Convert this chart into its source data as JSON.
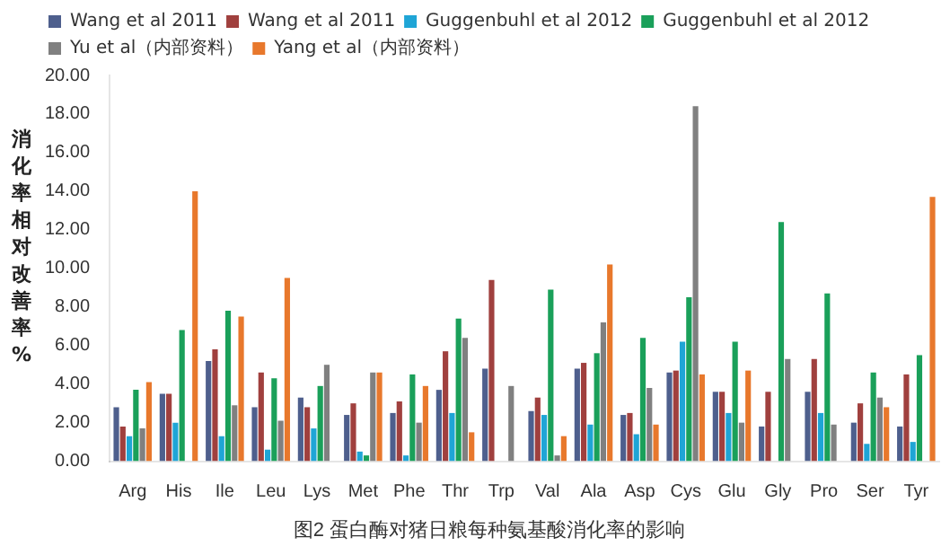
{
  "chart_data": {
    "type": "bar",
    "title": "图2 蛋白酶对猪日粮每种氨基酸消化率的影响",
    "ylabel": "消化率相对改善率%",
    "categories": [
      "Arg",
      "His",
      "Ile",
      "Leu",
      "Lys",
      "Met",
      "Phe",
      "Thr",
      "Trp",
      "Val",
      "Ala",
      "Asp",
      "Cys",
      "Glu",
      "Gly",
      "Pro",
      "Ser",
      "Tyr"
    ],
    "series": [
      {
        "name": "Wang et al 2011",
        "color": "#4e5f8d",
        "values": [
          2.8,
          3.5,
          5.2,
          2.8,
          3.3,
          2.4,
          2.5,
          3.7,
          4.8,
          2.6,
          4.8,
          2.4,
          4.6,
          3.6,
          1.8,
          3.6,
          2.0,
          1.8
        ]
      },
      {
        "name": "Wang et al 2011",
        "color": "#a0403e",
        "values": [
          1.8,
          3.5,
          5.8,
          4.6,
          2.8,
          3.0,
          3.1,
          5.7,
          9.4,
          3.3,
          5.1,
          2.5,
          4.7,
          3.6,
          3.6,
          5.3,
          3.0,
          4.5
        ]
      },
      {
        "name": "Guggenbuhl et al 2012",
        "color": "#1fa5d6",
        "values": [
          1.3,
          2.0,
          1.3,
          0.6,
          1.7,
          0.5,
          0.3,
          2.5,
          null,
          2.4,
          1.9,
          1.4,
          6.2,
          2.5,
          null,
          2.5,
          0.9,
          1.0
        ]
      },
      {
        "name": "Guggenbuhl et al 2012",
        "color": "#1aa05a",
        "values": [
          3.7,
          6.8,
          7.8,
          4.3,
          3.9,
          0.3,
          4.5,
          7.4,
          null,
          8.9,
          5.6,
          6.4,
          8.5,
          6.2,
          12.4,
          8.7,
          4.6,
          5.5
        ]
      },
      {
        "name": "Yu et al（内部资料）",
        "color": "#808080",
        "values": [
          1.7,
          null,
          2.9,
          2.1,
          5.0,
          4.6,
          2.0,
          6.4,
          3.9,
          0.3,
          7.2,
          3.8,
          18.4,
          2.0,
          5.3,
          1.9,
          3.3,
          null
        ]
      },
      {
        "name": "Yang et al（内部资料）",
        "color": "#e8782c",
        "values": [
          4.1,
          14.0,
          7.5,
          9.5,
          null,
          4.6,
          3.9,
          1.5,
          null,
          1.3,
          10.2,
          1.9,
          4.5,
          4.7,
          null,
          null,
          2.8,
          13.7
        ]
      }
    ],
    "ylim": [
      0,
      20
    ],
    "yticks": [
      {
        "value": 0,
        "label": "0.00"
      },
      {
        "value": 2,
        "label": "2.00"
      },
      {
        "value": 4,
        "label": "4.00"
      },
      {
        "value": 6,
        "label": "6.00"
      },
      {
        "value": 8,
        "label": "8.00"
      },
      {
        "value": 10,
        "label": "10.00"
      },
      {
        "value": 12,
        "label": "12.00"
      },
      {
        "value": 14,
        "label": "14.00"
      },
      {
        "value": 16,
        "label": "16.00"
      },
      {
        "value": 18,
        "label": "18.00"
      },
      {
        "value": 20,
        "label": "20.00"
      }
    ],
    "grid": false,
    "legend": "top"
  }
}
